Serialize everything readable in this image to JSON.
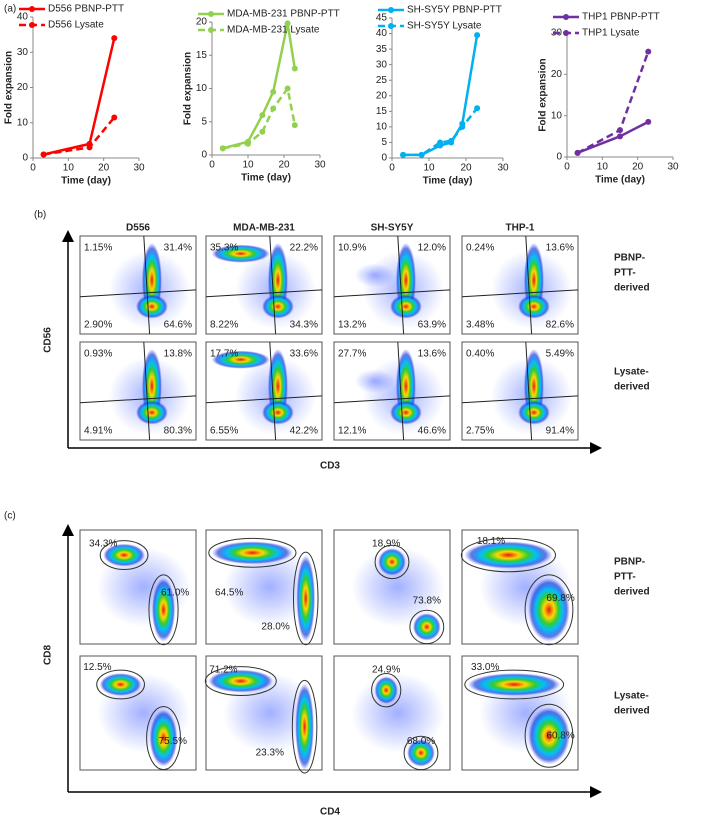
{
  "chart_data": [
    {
      "type": "line",
      "x_label": "Time (day)",
      "y_label": "Fold expansion",
      "xlim": [
        0,
        30
      ],
      "xticks": [
        0,
        10,
        20,
        30
      ],
      "ylim": [
        0,
        40
      ],
      "yticks": [
        0,
        10,
        20,
        30,
        40
      ],
      "series": [
        {
          "name": "D556 PBNP-PTT",
          "color": "#ff0000",
          "linestyle": "solid",
          "x": [
            3,
            16,
            23
          ],
          "values": [
            1,
            4,
            34
          ]
        },
        {
          "name": "D556 Lysate",
          "color": "#ff0000",
          "linestyle": "dashed",
          "x": [
            3,
            16,
            23
          ],
          "values": [
            1,
            3,
            11.5
          ]
        }
      ]
    },
    {
      "type": "line",
      "x_label": "Time (day)",
      "y_label": "Fold expansion",
      "xlim": [
        0,
        30
      ],
      "xticks": [
        0,
        10,
        20,
        30
      ],
      "ylim": [
        0,
        20
      ],
      "yticks": [
        0,
        5,
        10,
        15,
        20
      ],
      "series": [
        {
          "name": "MDA-MB-231 PBNP-PTT",
          "color": "#92d050",
          "linestyle": "solid",
          "x": [
            3,
            10,
            14,
            17,
            21,
            23
          ],
          "values": [
            1,
            2,
            6,
            9.5,
            19.8,
            13
          ]
        },
        {
          "name": "MDA-MB-231 Lysate",
          "color": "#92d050",
          "linestyle": "dashed",
          "x": [
            3,
            10,
            14,
            17,
            21,
            23
          ],
          "values": [
            1,
            1.7,
            3.5,
            7,
            10,
            4.5
          ]
        }
      ]
    },
    {
      "type": "line",
      "x_label": "Time (day)",
      "xlim": [
        0,
        30
      ],
      "xticks": [
        0,
        10,
        20,
        30
      ],
      "ylim": [
        0,
        45
      ],
      "yticks": [
        0,
        5,
        10,
        15,
        20,
        25,
        30,
        35,
        40,
        45
      ],
      "series": [
        {
          "name": "SH-SY5Y PBNP-PTT",
          "color": "#00b0f0",
          "linestyle": "solid",
          "x": [
            3,
            8,
            13,
            16,
            19,
            23
          ],
          "values": [
            1,
            1,
            4,
            5,
            11,
            39.5
          ]
        },
        {
          "name": "SH-SY5Y Lysate",
          "color": "#00b0f0",
          "linestyle": "dashed",
          "x": [
            3,
            8,
            13,
            16,
            19,
            23
          ],
          "values": [
            1,
            1,
            5,
            5.5,
            10,
            16
          ]
        }
      ]
    },
    {
      "type": "line",
      "x_label": "Time (day)",
      "y_label": "Fold expansion",
      "xlim": [
        0,
        30
      ],
      "xticks": [
        0,
        10,
        20,
        30
      ],
      "ylim": [
        0,
        30
      ],
      "yticks": [
        0,
        10,
        20,
        30
      ],
      "series": [
        {
          "name": "THP1 PBNP-PTT",
          "color": "#7030a0",
          "linestyle": "solid",
          "x": [
            3,
            15,
            23
          ],
          "values": [
            1,
            5,
            8.5
          ]
        },
        {
          "name": "THP1 Lysate",
          "color": "#7030a0",
          "linestyle": "dashed",
          "x": [
            3,
            15,
            23
          ],
          "values": [
            1,
            6.5,
            25.5
          ]
        }
      ]
    }
  ],
  "panel_labels": [
    "(a)",
    "(b)",
    "(c)"
  ],
  "flow_b": {
    "columns": [
      {
        "label": "D556",
        "color": "#ff0000"
      },
      {
        "label": "MDA-MB-231",
        "color": "#70ad47"
      },
      {
        "label": "SH-SY5Y",
        "color": "#00b0f0"
      },
      {
        "label": "THP-1",
        "color": "#7030a0"
      }
    ],
    "y_label": "CD56",
    "x_label": "CD3",
    "rows": [
      {
        "label": [
          "PBNP-",
          "PTT-",
          "derived"
        ]
      },
      {
        "label": [
          "Lysate-",
          "derived"
        ]
      }
    ],
    "plots": [
      [
        [
          "1.15%",
          "31.4%",
          "2.90%",
          "64.6%"
        ],
        [
          "35.3%",
          "22.2%",
          "8.22%",
          "34.3%"
        ],
        [
          "10.9%",
          "12.0%",
          "13.2%",
          "63.9%"
        ],
        [
          "0.24%",
          "13.6%",
          "3.48%",
          "82.6%"
        ]
      ],
      [
        [
          "0.93%",
          "13.8%",
          "4.91%",
          "80.3%"
        ],
        [
          "17.7%",
          "33.6%",
          "6.55%",
          "42.2%"
        ],
        [
          "27.7%",
          "13.6%",
          "12.1%",
          "46.6%"
        ],
        [
          "0.40%",
          "5.49%",
          "2.75%",
          "91.4%"
        ]
      ]
    ]
  },
  "flow_c": {
    "y_label": "CD8",
    "x_label": "CD4",
    "rows": [
      {
        "label": [
          "PBNP-",
          "PTT-",
          "derived"
        ]
      },
      {
        "label": [
          "Lysate-",
          "derived"
        ]
      }
    ],
    "plots": [
      [
        [
          "34.3%",
          "61.0%"
        ],
        [
          "64.5%",
          "28.0%"
        ],
        [
          "18.9%",
          "73.8%"
        ],
        [
          "18.1%",
          "69.8%"
        ]
      ],
      [
        [
          "12.5%",
          "75.5%"
        ],
        [
          "71.2%",
          "23.3%"
        ],
        [
          "24.9%",
          "68.0%"
        ],
        [
          "33.0%",
          "60.8%"
        ]
      ]
    ]
  }
}
